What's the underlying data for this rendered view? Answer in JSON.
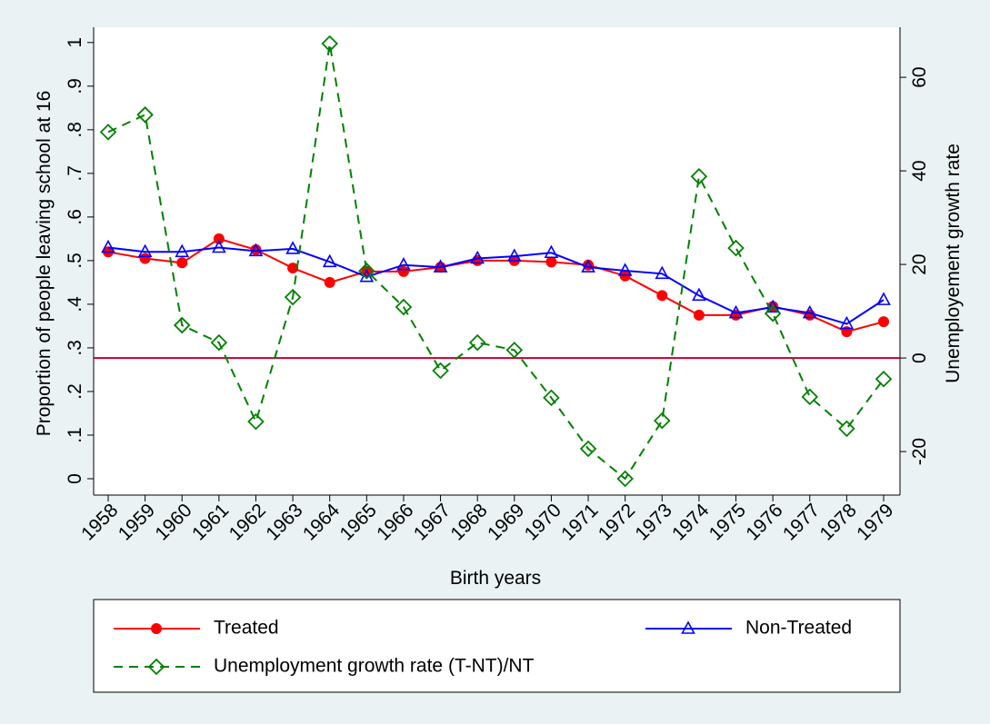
{
  "chart_data": {
    "type": "line",
    "x_label": "Birth years",
    "y_label": "Proportion of people leaving school at 16",
    "y2_label": "Unemployement growth rate",
    "categories": [
      "1958",
      "1959",
      "1960",
      "1961",
      "1962",
      "1963",
      "1964",
      "1965",
      "1966",
      "1967",
      "1968",
      "1969",
      "1970",
      "1971",
      "1972",
      "1973",
      "1974",
      "1975",
      "1976",
      "1977",
      "1978",
      "1979"
    ],
    "series": [
      {
        "name": "Treated",
        "color": "#ff0000",
        "marker": "circle",
        "dashed": false,
        "values": [
          0.52,
          0.505,
          0.495,
          0.55,
          0.525,
          0.483,
          0.45,
          0.475,
          0.475,
          0.485,
          0.5,
          0.5,
          0.497,
          0.49,
          0.465,
          0.42,
          0.375,
          0.375,
          0.395,
          0.375,
          0.337,
          0.36
        ]
      },
      {
        "name": "Non-Treated",
        "color": "#0000ff",
        "marker": "triangle",
        "dashed": false,
        "values": [
          0.53,
          0.52,
          0.52,
          0.53,
          0.522,
          0.527,
          0.497,
          0.463,
          0.49,
          0.485,
          0.505,
          0.51,
          0.518,
          0.485,
          0.477,
          0.47,
          0.42,
          0.38,
          0.393,
          0.38,
          0.355,
          0.41
        ]
      },
      {
        "name": "Unemployment growth rate (T-NT)/NT",
        "color": "#008000",
        "marker": "diamond",
        "dashed": true,
        "axis": "y2",
        "values": [
          48.3,
          52,
          7,
          3.3,
          -13.6,
          13,
          67.2,
          18.6,
          10.9,
          -2.7,
          3.3,
          1.7,
          -8.5,
          -19.4,
          -25.8,
          -13.4,
          38.8,
          23.5,
          9.5,
          -8.3,
          -15.1,
          -4.5
        ]
      }
    ],
    "ylim": [
      -0.0375,
      1.035
    ],
    "yticks": [
      0,
      {
        "value": 0.1,
        "label": ".1"
      },
      {
        "value": 0.2,
        "label": ".2"
      },
      {
        "value": 0.3,
        "label": ".3"
      },
      {
        "value": 0.4,
        "label": ".4"
      },
      {
        "value": 0.5,
        "label": ".5"
      },
      {
        "value": 0.6,
        "label": ".6"
      },
      {
        "value": 0.7,
        "label": ".7"
      },
      {
        "value": 0.8,
        "label": ".8"
      },
      {
        "value": 0.9,
        "label": ".9"
      },
      1
    ],
    "y2lim": [
      -29.3,
      70.7
    ],
    "y2ticks": [
      -20,
      0,
      20,
      40,
      60
    ],
    "reference_line": {
      "value": 0,
      "axis": "y2",
      "color": "#c00030"
    },
    "grid": false
  }
}
